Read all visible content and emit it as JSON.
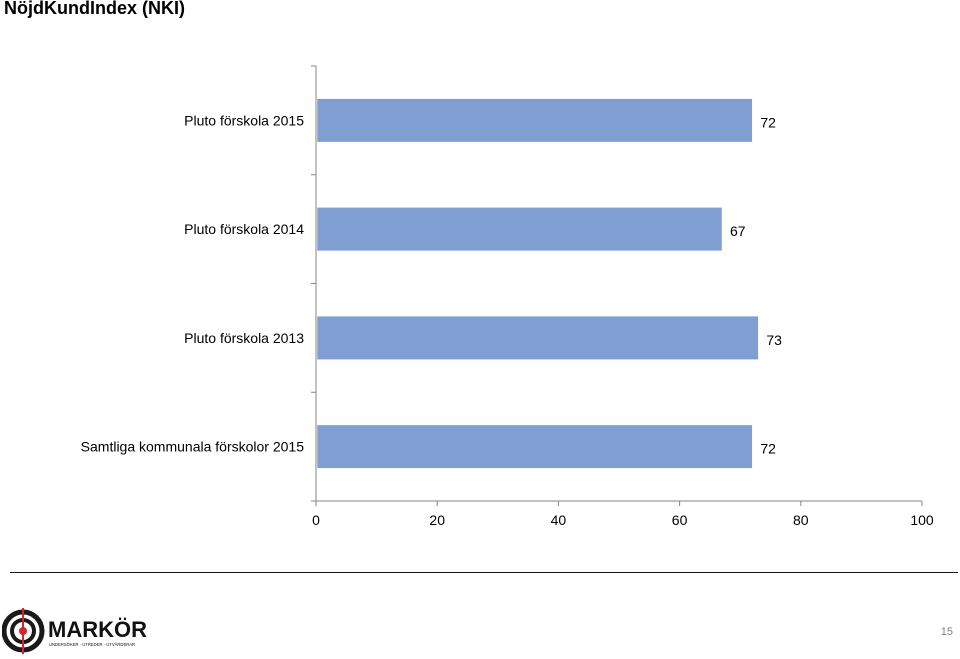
{
  "header": {
    "title": "NöjdKundIndex (NKI)"
  },
  "chart_data": {
    "type": "bar",
    "orientation": "horizontal",
    "categories": [
      "Pluto förskola 2015",
      "Pluto förskola 2014",
      "Pluto förskola 2013",
      "Samtliga kommunala förskolor 2015"
    ],
    "values": [
      72,
      67,
      73,
      72
    ],
    "xlim": [
      0,
      100
    ],
    "xticks": [
      "0",
      "20",
      "40",
      "60",
      "80",
      "100"
    ],
    "bar_color": "#7f9fd3",
    "grid": false,
    "legend": "none",
    "data_labels": true
  },
  "footer": {
    "logo_text": "MARKÖR",
    "logo_tagline": "UNDERSÖKER · UTREDER · UTVÄRDERAR",
    "page_number": "15"
  }
}
